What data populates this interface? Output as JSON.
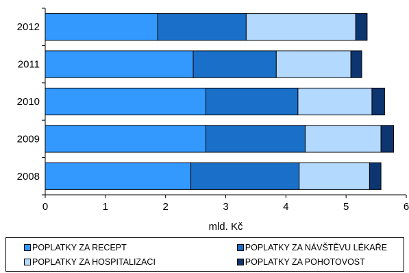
{
  "chart_data": {
    "type": "bar",
    "orientation": "horizontal",
    "stacked": true,
    "categories": [
      "2012",
      "2011",
      "2010",
      "2009",
      "2008"
    ],
    "series": [
      {
        "name": "POPLATKY ZA RECEPT",
        "color": "#3399ff",
        "values": [
          1.87,
          2.46,
          2.67,
          2.67,
          2.42
        ]
      },
      {
        "name": "POPLATKY ZA NÁVŠTĚVU LÉKAŘE",
        "color": "#1a70c8",
        "values": [
          1.47,
          1.38,
          1.53,
          1.65,
          1.8
        ]
      },
      {
        "name": "POPLATKY ZA HOSPITALIZACI",
        "color": "#b3d9ff",
        "values": [
          1.82,
          1.24,
          1.23,
          1.26,
          1.17
        ]
      },
      {
        "name": "POPLATKY ZA POHOTOVOST",
        "color": "#0d3570",
        "values": [
          0.19,
          0.18,
          0.21,
          0.21,
          0.19
        ]
      }
    ],
    "xlabel": "mld. Kč",
    "xlim": [
      0,
      6
    ],
    "xticks": [
      "0",
      "1",
      "2",
      "3",
      "4",
      "5",
      "6"
    ],
    "grid": false,
    "legend_position": "bottom"
  }
}
